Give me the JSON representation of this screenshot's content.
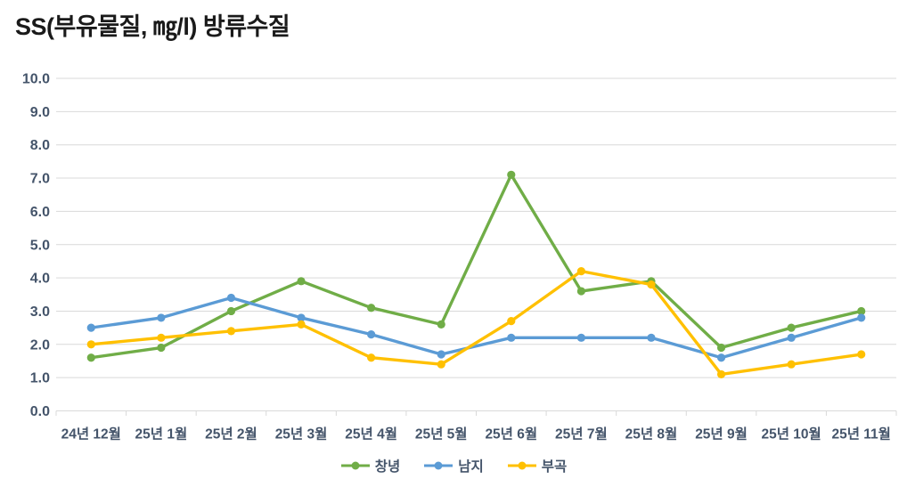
{
  "chart_data": {
    "type": "line",
    "title": "SS(부유물질, ㎎/l) 방류수질",
    "categories": [
      "24년 12월",
      "25년 1월",
      "25년 2월",
      "25년 3월",
      "25년 4월",
      "25년 5월",
      "25년 6월",
      "25년 7월",
      "25년 8월",
      "25년 9월",
      "25년 10월",
      "25년 11월"
    ],
    "series": [
      {
        "id": "changnyeong",
        "name": "창녕",
        "color": "#70AD47",
        "values": [
          1.6,
          1.9,
          3.0,
          3.9,
          3.1,
          2.6,
          7.1,
          3.6,
          3.9,
          1.9,
          2.5,
          3.0
        ]
      },
      {
        "id": "namji",
        "name": "남지",
        "color": "#5B9BD5",
        "values": [
          2.5,
          2.8,
          3.4,
          2.8,
          2.3,
          1.7,
          2.2,
          2.2,
          2.2,
          1.6,
          2.2,
          2.8
        ]
      },
      {
        "id": "bugok",
        "name": "부곡",
        "color": "#FFC000",
        "values": [
          2.0,
          2.2,
          2.4,
          2.6,
          1.6,
          1.4,
          2.7,
          4.2,
          3.8,
          1.1,
          1.4,
          1.7
        ]
      }
    ],
    "xlabel": "",
    "ylabel": "",
    "ylim": [
      0,
      10
    ],
    "ytick_step": 1,
    "ytick_labels": [
      "0.0",
      "1.0",
      "2.0",
      "3.0",
      "4.0",
      "5.0",
      "6.0",
      "7.0",
      "8.0",
      "9.0",
      "10.0"
    ],
    "grid": "horizontal",
    "legend_position": "bottom-center",
    "marker": "circle",
    "colors": {
      "grid": "#D9D9D9",
      "axis_text": "#44546A",
      "title_text": "#1A1A1A",
      "legend_text": "#44546A",
      "background": "#FFFFFF"
    }
  }
}
